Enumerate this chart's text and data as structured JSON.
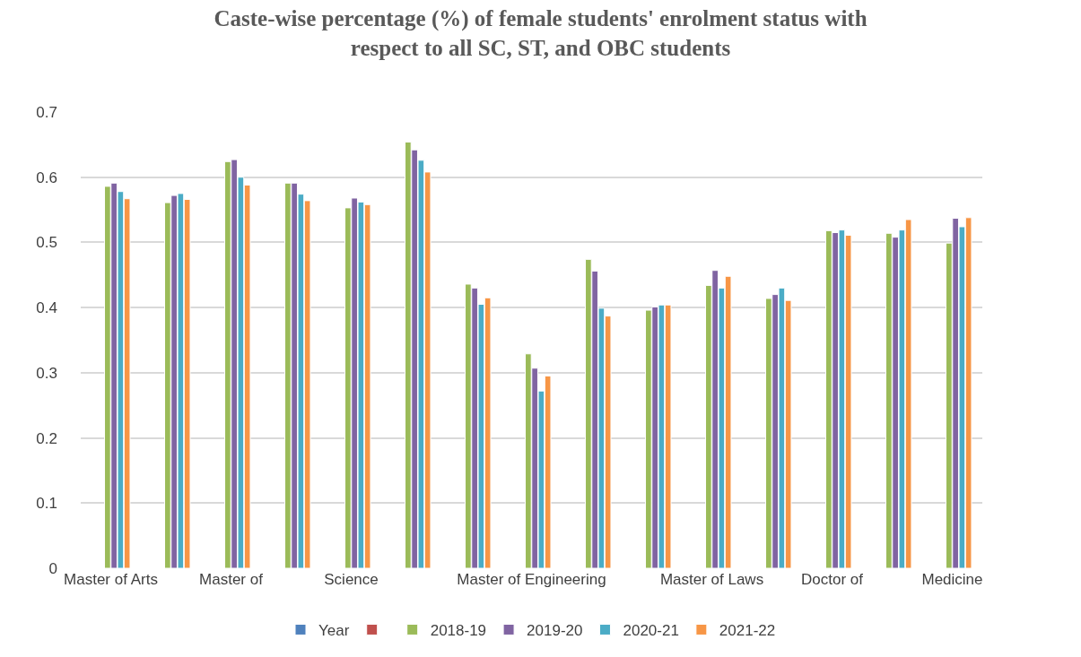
{
  "chart_data": {
    "type": "bar",
    "title": "Caste-wise percentage (%) of female students' enrolment status with respect to all SC, ST, and OBC students",
    "categories": [
      "Master of Arts",
      null,
      "Master of",
      null,
      "Science",
      null,
      null,
      "Master of Engineering",
      null,
      null,
      "Master of Laws",
      null,
      "Doctor of",
      null,
      "Medicine"
    ],
    "series": [
      {
        "name": "Year",
        "color": "#4f81bd",
        "values": [
          null,
          null,
          null,
          null,
          null,
          null,
          null,
          null,
          null,
          null,
          null,
          null,
          null,
          null,
          null
        ]
      },
      {
        "color": "#c0504d",
        "values": [
          null,
          null,
          null,
          null,
          null,
          null,
          null,
          null,
          null,
          null,
          null,
          null,
          null,
          null,
          null
        ]
      },
      {
        "name": "2018-19",
        "color": "#9bbb59",
        "values": [
          0.586,
          0.561,
          0.624,
          0.591,
          0.553,
          0.654,
          0.436,
          0.329,
          0.474,
          0.396,
          0.434,
          0.414,
          0.518,
          0.514,
          0.499
        ]
      },
      {
        "name": "2019-20",
        "color": "#8064a2",
        "values": [
          0.591,
          0.572,
          0.627,
          0.591,
          0.568,
          0.642,
          0.43,
          0.307,
          0.456,
          0.401,
          0.457,
          0.42,
          0.515,
          0.508,
          0.537
        ]
      },
      {
        "name": "2020-21",
        "color": "#4bacc6",
        "values": [
          0.578,
          0.575,
          0.6,
          0.574,
          0.562,
          0.626,
          0.405,
          0.272,
          0.399,
          0.404,
          0.43,
          0.43,
          0.519,
          0.519,
          0.524
        ]
      },
      {
        "name": "2021-22",
        "color": "#f79646",
        "values": [
          0.567,
          0.566,
          0.588,
          0.564,
          0.558,
          0.608,
          0.415,
          0.295,
          0.387,
          0.404,
          0.448,
          0.411,
          0.511,
          0.535,
          0.538
        ]
      }
    ],
    "ylim": [
      0,
      0.7
    ],
    "yticks": [
      {
        "value": 0,
        "label": "0"
      },
      0.1,
      0.2,
      0.3,
      0.4,
      0.5,
      0.6,
      0.7
    ],
    "grid": "y",
    "legend": "bottom"
  }
}
